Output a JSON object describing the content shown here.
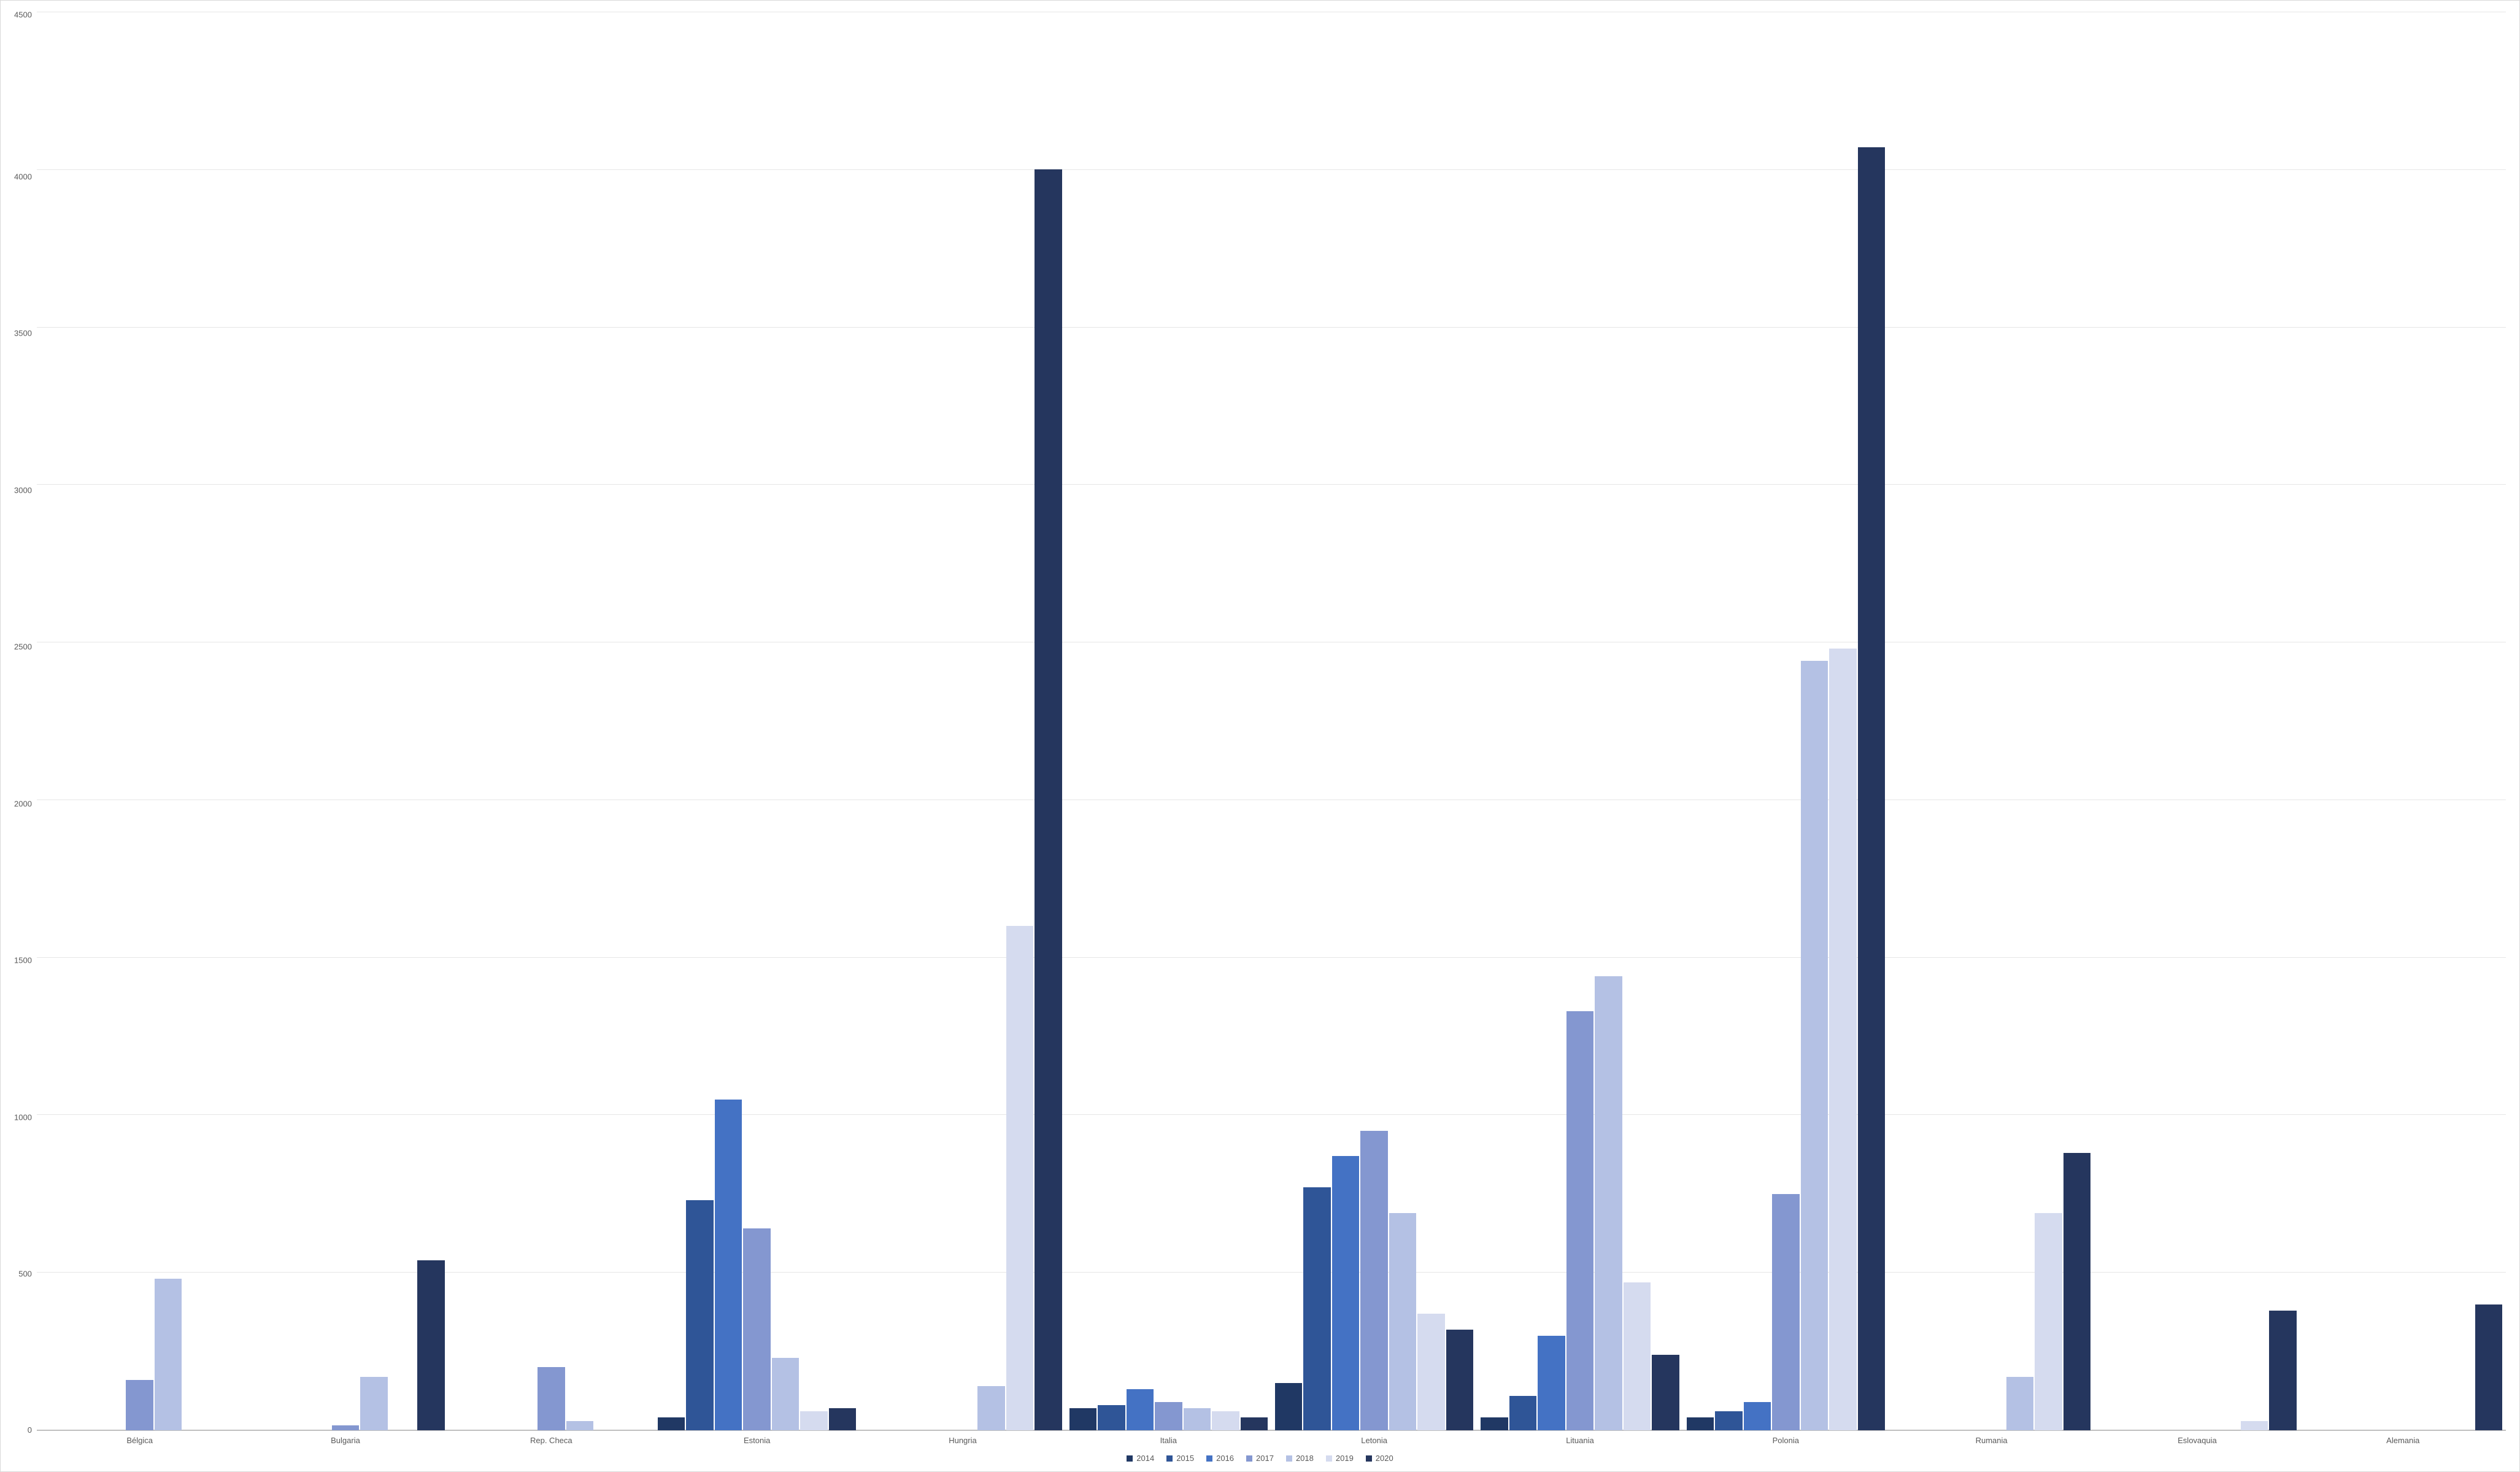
{
  "chart": {
    "type": "bar",
    "background_color": "#ffffff",
    "frame_border_color": "#d9d9d9",
    "grid_color": "#e6e6e6",
    "axis_line_color": "#bfbfbf",
    "label_color": "#595959",
    "label_fontsize": 13,
    "ylim": [
      0,
      4500
    ],
    "ytick_step": 500,
    "yticks": [
      "4500",
      "4000",
      "3500",
      "3000",
      "2500",
      "2000",
      "1500",
      "1000",
      "500",
      "0"
    ],
    "categories": [
      "Bélgica",
      "Bulgaria",
      "Rep. Checa",
      "Estonia",
      "Hungria",
      "Italia",
      "Letonia",
      "Lituania",
      "Polonia",
      "Rumania",
      "Eslovaquia",
      "Alemania"
    ],
    "series": [
      {
        "name": "2014",
        "color": "#203864"
      },
      {
        "name": "2015",
        "color": "#2f5597"
      },
      {
        "name": "2016",
        "color": "#4472c4"
      },
      {
        "name": "2017",
        "color": "#8497d0"
      },
      {
        "name": "2018",
        "color": "#b4c1e4"
      },
      {
        "name": "2019",
        "color": "#d5dbef"
      },
      {
        "name": "2020",
        "color": "#25365e"
      }
    ],
    "data": {
      "Bélgica": {
        "2014": 0,
        "2015": 0,
        "2016": 0,
        "2017": 160,
        "2018": 480,
        "2019": 0,
        "2020": 0
      },
      "Bulgaria": {
        "2014": 0,
        "2015": 0,
        "2016": 0,
        "2017": 15,
        "2018": 170,
        "2019": 0,
        "2020": 540
      },
      "Rep. Checa": {
        "2014": 0,
        "2015": 0,
        "2016": 0,
        "2017": 200,
        "2018": 30,
        "2019": 0,
        "2020": 0
      },
      "Estonia": {
        "2014": 40,
        "2015": 730,
        "2016": 1050,
        "2017": 640,
        "2018": 230,
        "2019": 60,
        "2020": 70
      },
      "Hungria": {
        "2014": 0,
        "2015": 0,
        "2016": 0,
        "2017": 0,
        "2018": 140,
        "2019": 1600,
        "2020": 4000
      },
      "Italia": {
        "2014": 70,
        "2015": 80,
        "2016": 130,
        "2017": 90,
        "2018": 70,
        "2019": 60,
        "2020": 40
      },
      "Letonia": {
        "2014": 150,
        "2015": 770,
        "2016": 870,
        "2017": 950,
        "2018": 690,
        "2019": 370,
        "2020": 320
      },
      "Lituania": {
        "2014": 40,
        "2015": 110,
        "2016": 300,
        "2017": 1330,
        "2018": 1440,
        "2019": 470,
        "2020": 240
      },
      "Polonia": {
        "2014": 40,
        "2015": 60,
        "2016": 90,
        "2017": 750,
        "2018": 2440,
        "2019": 2480,
        "2020": 4070
      },
      "Rumania": {
        "2014": 0,
        "2015": 0,
        "2016": 0,
        "2017": 0,
        "2018": 170,
        "2019": 690,
        "2020": 880
      },
      "Eslovaquia": {
        "2014": 0,
        "2015": 0,
        "2016": 0,
        "2017": 0,
        "2018": 0,
        "2019": 30,
        "2020": 380
      },
      "Alemania": {
        "2014": 0,
        "2015": 0,
        "2016": 0,
        "2017": 0,
        "2018": 0,
        "2019": 0,
        "2020": 400
      }
    }
  }
}
